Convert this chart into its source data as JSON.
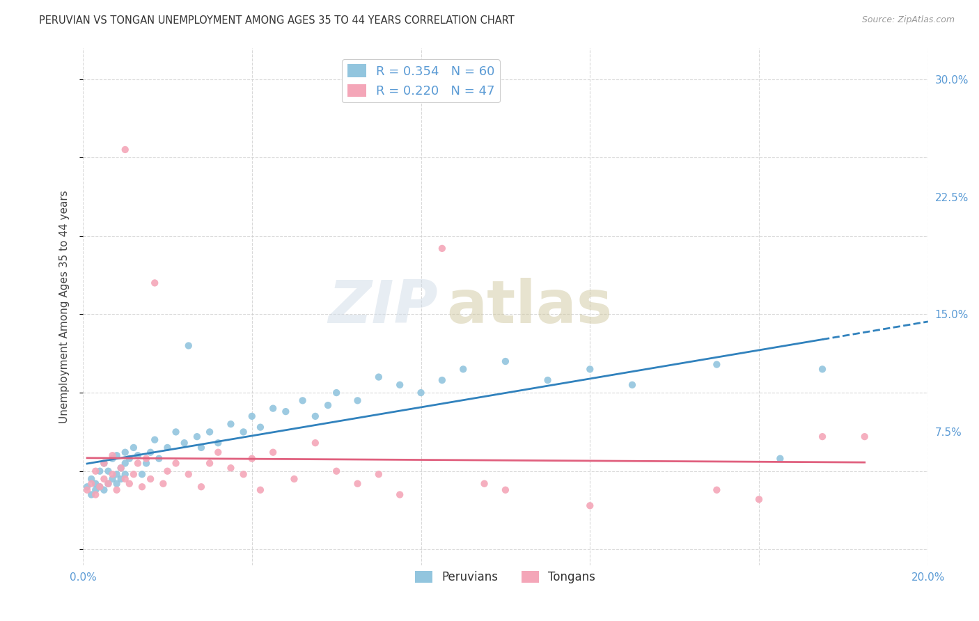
{
  "title": "PERUVIAN VS TONGAN UNEMPLOYMENT AMONG AGES 35 TO 44 YEARS CORRELATION CHART",
  "source": "Source: ZipAtlas.com",
  "ylabel": "Unemployment Among Ages 35 to 44 years",
  "xlim": [
    0.0,
    0.2
  ],
  "ylim": [
    -0.01,
    0.32
  ],
  "yticks_right": [
    0.0,
    0.075,
    0.15,
    0.225,
    0.3
  ],
  "ytick_labels_right": [
    "",
    "7.5%",
    "15.0%",
    "22.5%",
    "30.0%"
  ],
  "blue_color": "#92c5de",
  "pink_color": "#f4a6b8",
  "blue_line_color": "#3182bd",
  "pink_line_color": "#e0607e",
  "blue_r": "0.354",
  "blue_n": "60",
  "pink_r": "0.220",
  "pink_n": "47",
  "legend_label_blue": "Peruvians",
  "legend_label_pink": "Tongans",
  "peruvian_x": [
    0.001,
    0.002,
    0.002,
    0.003,
    0.003,
    0.004,
    0.004,
    0.005,
    0.005,
    0.006,
    0.006,
    0.007,
    0.007,
    0.008,
    0.008,
    0.008,
    0.009,
    0.009,
    0.01,
    0.01,
    0.01,
    0.011,
    0.012,
    0.013,
    0.014,
    0.015,
    0.016,
    0.017,
    0.018,
    0.02,
    0.022,
    0.024,
    0.025,
    0.027,
    0.028,
    0.03,
    0.032,
    0.035,
    0.038,
    0.04,
    0.042,
    0.045,
    0.048,
    0.052,
    0.055,
    0.058,
    0.06,
    0.065,
    0.07,
    0.075,
    0.08,
    0.085,
    0.09,
    0.1,
    0.11,
    0.12,
    0.13,
    0.15,
    0.165,
    0.175
  ],
  "peruvian_y": [
    0.04,
    0.035,
    0.045,
    0.038,
    0.042,
    0.04,
    0.05,
    0.038,
    0.055,
    0.042,
    0.05,
    0.045,
    0.058,
    0.042,
    0.048,
    0.06,
    0.052,
    0.045,
    0.048,
    0.055,
    0.062,
    0.058,
    0.065,
    0.06,
    0.048,
    0.055,
    0.062,
    0.07,
    0.058,
    0.065,
    0.075,
    0.068,
    0.13,
    0.072,
    0.065,
    0.075,
    0.068,
    0.08,
    0.075,
    0.085,
    0.078,
    0.09,
    0.088,
    0.095,
    0.085,
    0.092,
    0.1,
    0.095,
    0.11,
    0.105,
    0.1,
    0.108,
    0.115,
    0.12,
    0.108,
    0.115,
    0.105,
    0.118,
    0.058,
    0.115
  ],
  "tongan_x": [
    0.001,
    0.002,
    0.003,
    0.003,
    0.004,
    0.005,
    0.005,
    0.006,
    0.007,
    0.007,
    0.008,
    0.009,
    0.01,
    0.01,
    0.011,
    0.012,
    0.013,
    0.014,
    0.015,
    0.016,
    0.017,
    0.019,
    0.02,
    0.022,
    0.025,
    0.028,
    0.03,
    0.032,
    0.035,
    0.038,
    0.04,
    0.042,
    0.045,
    0.05,
    0.055,
    0.06,
    0.065,
    0.07,
    0.075,
    0.085,
    0.095,
    0.1,
    0.12,
    0.15,
    0.16,
    0.175,
    0.185
  ],
  "tongan_y": [
    0.038,
    0.042,
    0.035,
    0.05,
    0.04,
    0.045,
    0.055,
    0.042,
    0.048,
    0.06,
    0.038,
    0.052,
    0.045,
    0.255,
    0.042,
    0.048,
    0.055,
    0.04,
    0.058,
    0.045,
    0.17,
    0.042,
    0.05,
    0.055,
    0.048,
    0.04,
    0.055,
    0.062,
    0.052,
    0.048,
    0.058,
    0.038,
    0.062,
    0.045,
    0.068,
    0.05,
    0.042,
    0.048,
    0.035,
    0.192,
    0.042,
    0.038,
    0.028,
    0.038,
    0.032,
    0.072,
    0.072
  ],
  "watermark_zip": "ZIP",
  "watermark_atlas": "atlas",
  "background_color": "#ffffff",
  "grid_color": "#d0d0d0"
}
